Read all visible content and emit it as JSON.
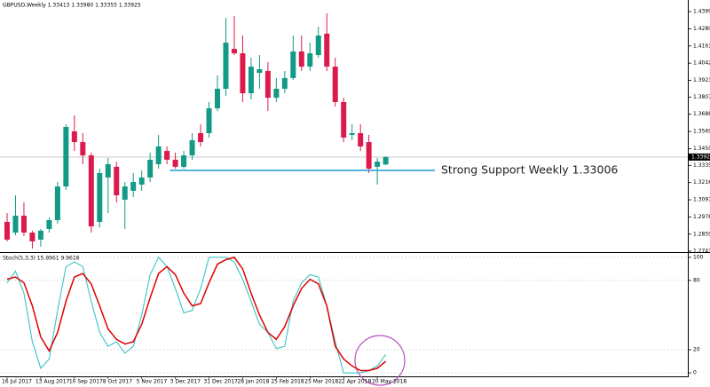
{
  "chart_data": [
    {
      "type": "candlestick",
      "title": "GBPUSD,Weekly 1.33413 1.33980 1.33355 1.33925",
      "categories": [
        "16 Jul 2017",
        null,
        null,
        null,
        "13 Aug 2017",
        null,
        null,
        null,
        "10 Sep 2017",
        null,
        null,
        null,
        "8 Oct 2017",
        null,
        null,
        null,
        "5 Nov 2017",
        null,
        null,
        null,
        "3 Dec 2017",
        null,
        null,
        null,
        "31 Dec 2017",
        null,
        null,
        null,
        "28 Jan 2018",
        null,
        null,
        null,
        "25 Feb 2018",
        null,
        null,
        null,
        "25 Mar 2018",
        null,
        null,
        null,
        "22 Apr 2018",
        null,
        null,
        null,
        "20 May 2018",
        null
      ],
      "open": [
        1.2944,
        1.287,
        1.2987,
        1.287,
        1.2821,
        1.2895,
        1.2956,
        1.3189,
        1.357,
        1.3496,
        1.3404,
        1.2944,
        1.3251,
        1.3325,
        1.3097,
        1.3159,
        1.3202,
        1.3251,
        1.3343,
        1.3435,
        1.3374,
        1.3325,
        1.3404,
        1.3558,
        1.3558,
        1.373,
        1.3865,
        1.4141,
        1.411,
        1.3834,
        1.3975,
        1.3988,
        1.3803,
        1.3865,
        1.3939,
        1.4123,
        1.4018,
        1.4098,
        1.4246,
        1.4018,
        1.3773,
        1.3546,
        1.3558,
        1.3496,
        1.3325,
        1.33413
      ],
      "high": [
        1.3005,
        1.3128,
        1.3079,
        1.2883,
        1.2895,
        1.2974,
        1.322,
        1.3619,
        1.3681,
        1.3558,
        1.3423,
        1.3312,
        1.3386,
        1.3361,
        1.322,
        1.3282,
        1.33,
        1.3423,
        1.3546,
        1.3466,
        1.3423,
        1.3435,
        1.3558,
        1.3619,
        1.3773,
        1.3957,
        1.4356,
        1.4368,
        1.4233,
        1.408,
        1.4098,
        1.4049,
        1.3939,
        1.3988,
        1.4233,
        1.4233,
        1.4184,
        1.4295,
        1.4387,
        1.408,
        1.3803,
        1.3619,
        1.3619,
        1.3546,
        1.3386,
        1.3398
      ],
      "low": [
        1.2809,
        1.2852,
        1.2846,
        1.276,
        1.2772,
        1.287,
        1.2932,
        1.3165,
        1.3435,
        1.3343,
        1.287,
        1.2907,
        1.3005,
        1.3079,
        1.2895,
        1.3116,
        1.3159,
        1.322,
        1.3312,
        1.3343,
        1.3312,
        1.3312,
        1.3374,
        1.3466,
        1.3527,
        1.3711,
        1.3816,
        1.4098,
        1.3773,
        1.3791,
        1.3865,
        1.3711,
        1.3773,
        1.3834,
        1.3926,
        1.3988,
        1.3988,
        1.408,
        1.3988,
        1.3742,
        1.3496,
        1.3509,
        1.3435,
        1.3282,
        1.3202,
        1.33355
      ],
      "close": [
        1.2821,
        1.2987,
        1.287,
        1.2809,
        1.2883,
        1.2956,
        1.3189,
        1.3601,
        1.3496,
        1.3404,
        1.2913,
        1.3282,
        1.3343,
        1.3128,
        1.3189,
        1.322,
        1.3251,
        1.3374,
        1.3466,
        1.3374,
        1.3325,
        1.3404,
        1.3509,
        1.3496,
        1.373,
        1.3865,
        1.4184,
        1.411,
        1.3834,
        1.4018,
        1.4,
        1.3803,
        1.3865,
        1.3939,
        1.4123,
        1.4018,
        1.411,
        1.4233,
        1.4018,
        1.3773,
        1.3527,
        1.3558,
        1.3466,
        1.3312,
        1.3361,
        1.33925
      ],
      "up_color": "#139a86",
      "down_color": "#dc1a4c",
      "ylim": [
        1.2735,
        1.4479
      ],
      "yticks": [
        {
          "value": 1.4399,
          "label": "1.43990"
        },
        {
          "value": 1.428,
          "label": "1.42800"
        },
        {
          "value": 1.4161,
          "label": "1.41610"
        },
        {
          "value": 1.4042,
          "label": "1.40420"
        },
        {
          "value": 1.3923,
          "label": "1.39230"
        },
        {
          "value": 1.38075,
          "label": "1.38075"
        },
        {
          "value": 1.36885,
          "label": "1.36885"
        },
        {
          "value": 1.35695,
          "label": "1.35695"
        },
        {
          "value": 1.34505,
          "label": "1.34505"
        },
        {
          "value": 1.3335,
          "label": "1.33350"
        },
        {
          "value": 1.3216,
          "label": "1.32160"
        },
        {
          "value": 1.3097,
          "label": "1.30970"
        },
        {
          "value": 1.2978,
          "label": "1.29780"
        },
        {
          "value": 1.2859,
          "label": "1.28590"
        },
        {
          "value": 1.27415,
          "label": "1.27415"
        }
      ],
      "current_price": {
        "value": 1.33925,
        "label": "1.33925"
      },
      "annotations": [
        {
          "text": "Strong Support Weekly 1.33006",
          "value": 1.33006,
          "color": "#2aa3d6"
        }
      ]
    },
    {
      "type": "line",
      "title": "Stoch(5,3,3) 15.8961 9.9618",
      "series": [
        {
          "color": "#3cc3c3",
          "values": [
            78,
            88,
            69,
            27,
            4,
            12,
            54,
            92,
            96,
            92,
            62,
            35,
            23,
            27,
            17,
            23,
            50,
            85,
            100,
            92,
            73,
            52,
            54,
            73,
            100,
            100,
            100,
            96,
            81,
            62,
            42,
            35,
            21,
            23,
            62,
            78,
            85,
            83,
            58,
            27,
            0,
            0,
            0,
            2,
            6,
            15.8961
          ]
        },
        {
          "color": "#e00000",
          "values": [
            81,
            83,
            78,
            58,
            31,
            19,
            35,
            62,
            83,
            86,
            77,
            58,
            38,
            29,
            25,
            27,
            42,
            65,
            86,
            92,
            85,
            69,
            58,
            60,
            78,
            94,
            98,
            100,
            90,
            69,
            50,
            35,
            29,
            40,
            58,
            73,
            81,
            77,
            58,
            23,
            12,
            6,
            2,
            2,
            4,
            9.9618
          ]
        }
      ],
      "ylim": [
        -3,
        103
      ],
      "yticks": [
        0,
        20,
        80,
        100
      ],
      "grid": true
    }
  ]
}
